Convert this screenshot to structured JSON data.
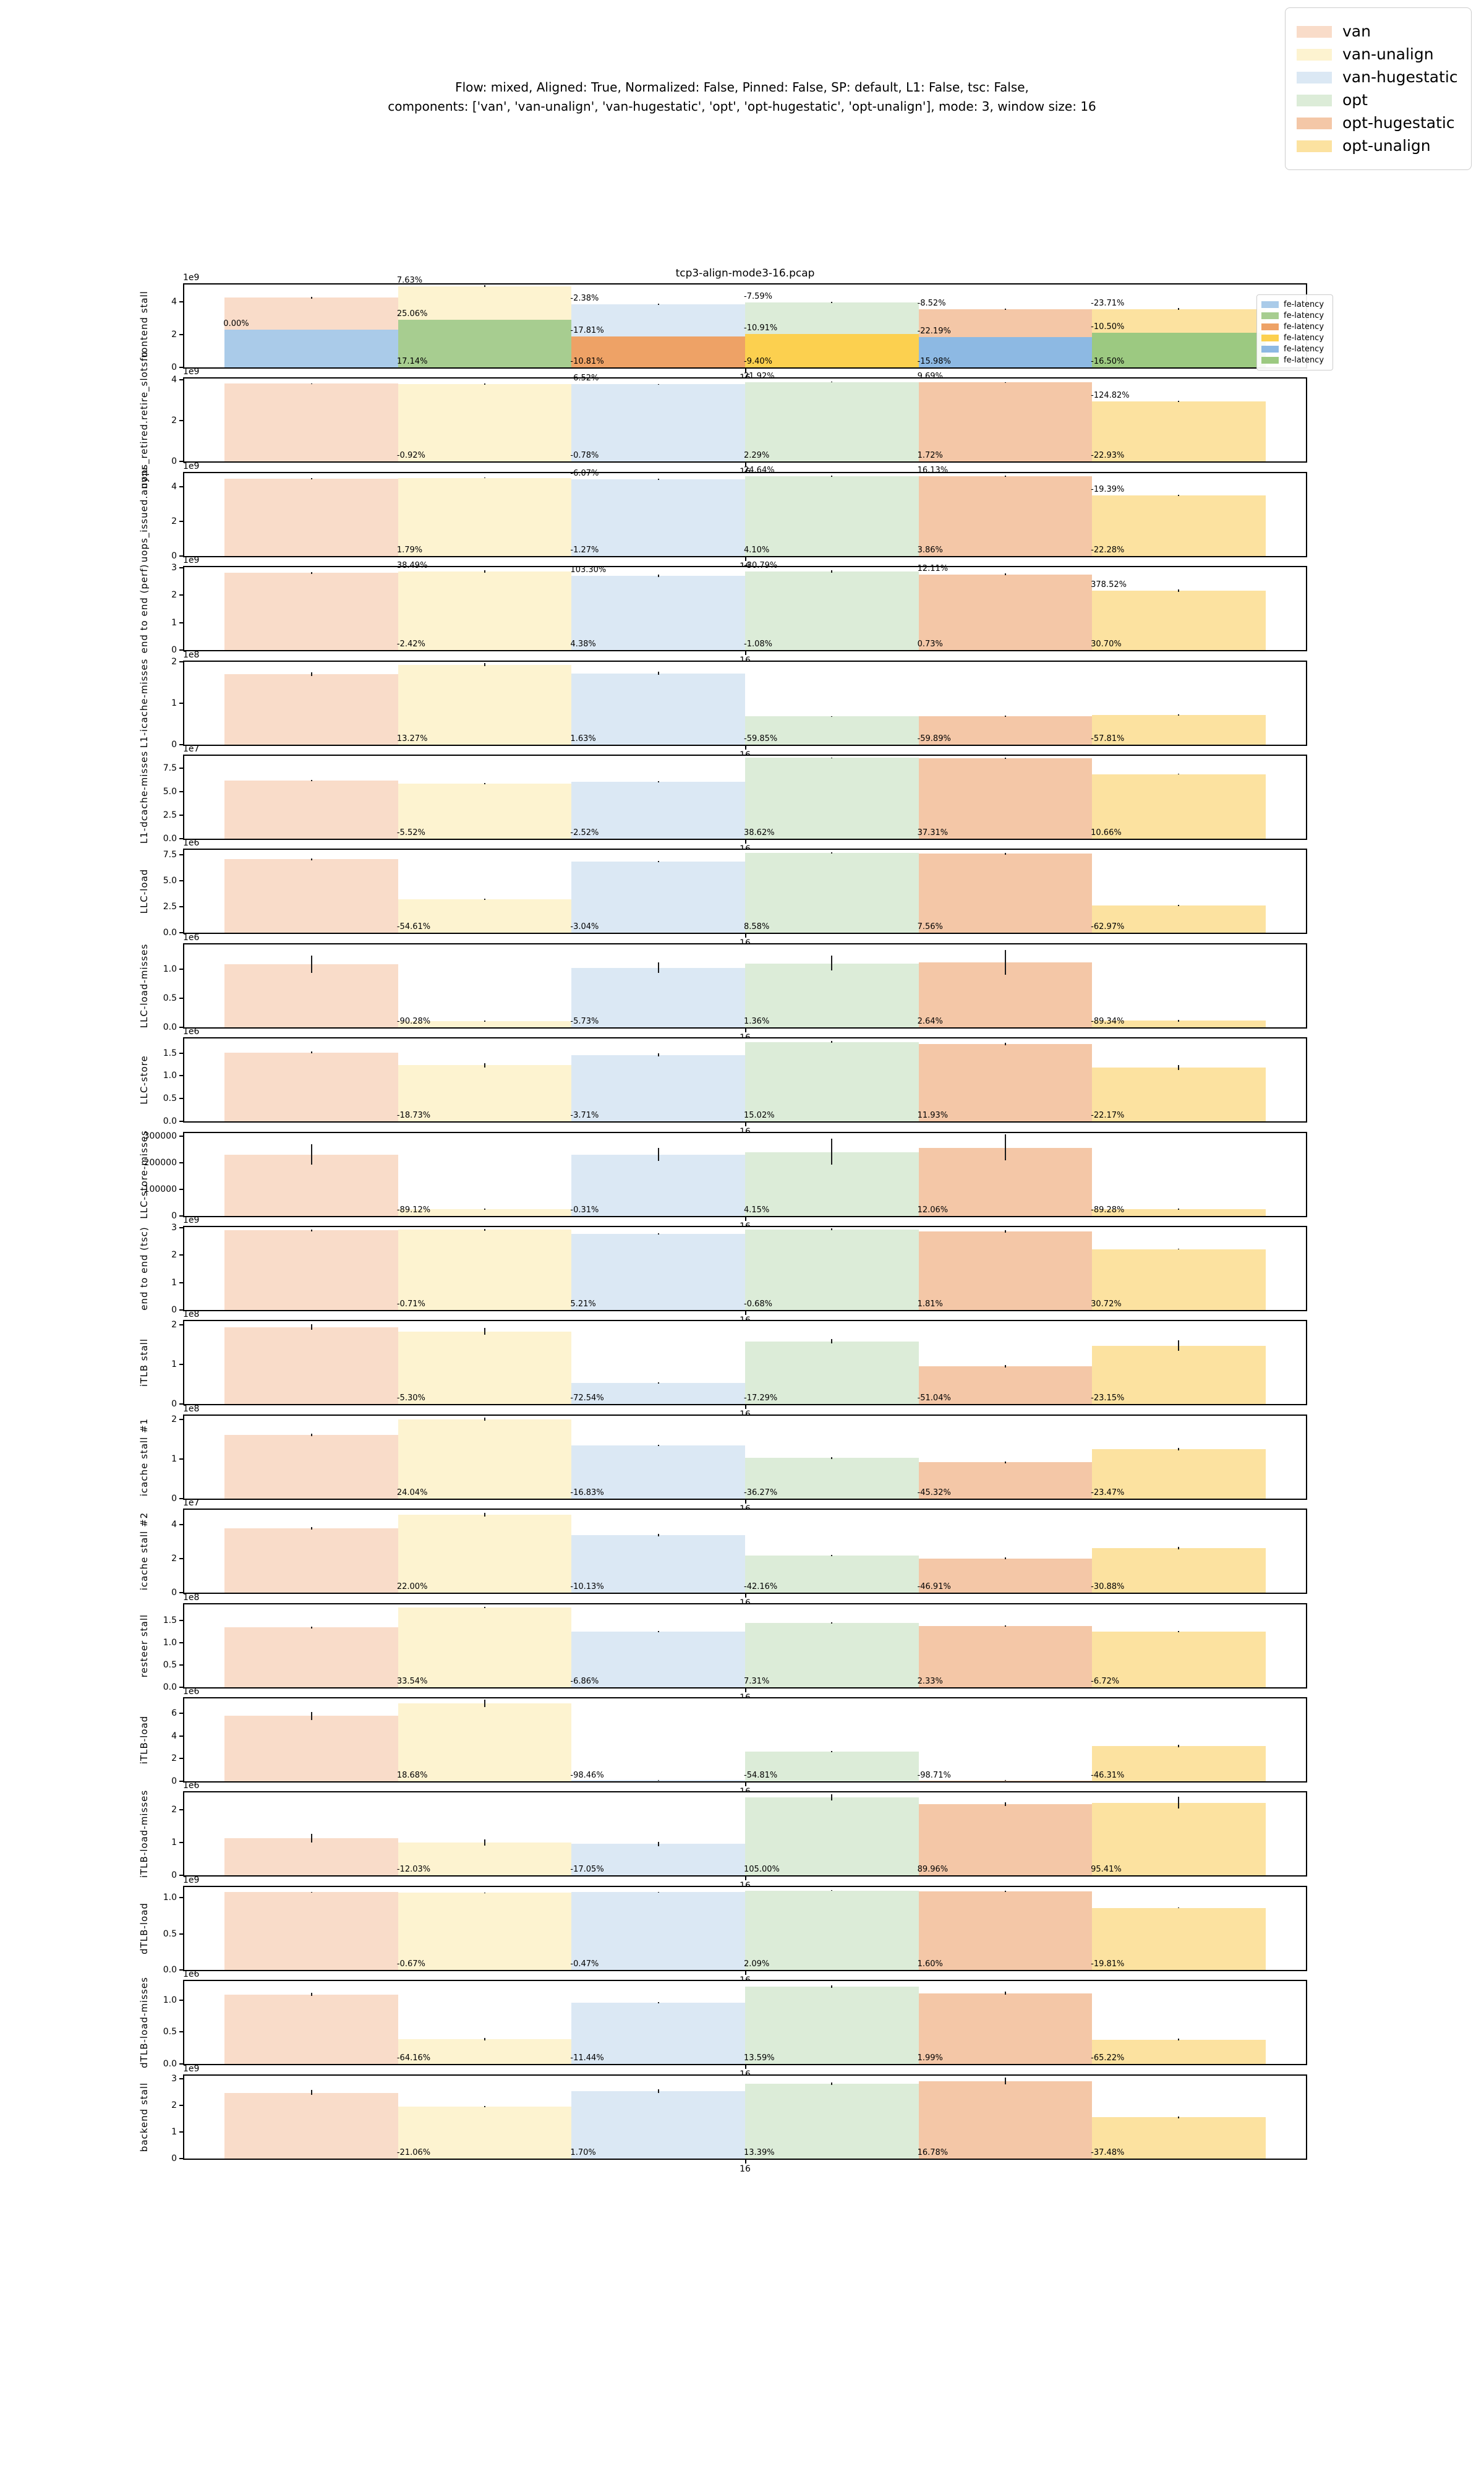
{
  "suptitle": {
    "line1": "Flow: mixed, Aligned: True, Normalized: False, Pinned: False, SP: default, L1: False, tsc: False,",
    "line2": "components: ['van', 'van-unalign', 'van-hugestatic', 'opt', 'opt-hugestatic', 'opt-unalign'], mode: 3, window size: 16"
  },
  "series": {
    "names": [
      "van",
      "van-unalign",
      "van-hugestatic",
      "opt",
      "opt-hugestatic",
      "opt-unalign"
    ],
    "colors": [
      "#f9dcc9",
      "#fdf3d0",
      "#dbe8f4",
      "#dcecd8",
      "#f4c7a7",
      "#fce2a0"
    ]
  },
  "inner_legend": {
    "label": "fe-latency",
    "colors": [
      "#aacbe9",
      "#a7cd90",
      "#eea266",
      "#fcd04f",
      "#8db9e3",
      "#9cc981"
    ]
  },
  "x_tick": "16",
  "chart_data": {
    "type": "bar",
    "x_group_label": "16",
    "note_units": "values are in axis units; multiply by scale (e.g. 1e9)",
    "charts": [
      {
        "title": "tcp3-align-mode3-16.pcap",
        "ylabel": "frontend stall",
        "scale": "1e9",
        "ymax": 5.05,
        "yticks": [
          [
            0,
            "0"
          ],
          [
            2,
            "2"
          ],
          [
            4,
            "4"
          ]
        ],
        "values": [
          4.25,
          4.95,
          3.85,
          3.95,
          3.55,
          3.55
        ],
        "fg_values": [
          2.3,
          2.9,
          1.9,
          2.05,
          1.85,
          2.1
        ],
        "err": [
          0.05,
          0.05,
          0.04,
          0.04,
          0.04,
          0.05
        ],
        "labels_top": [
          null,
          "7.63%",
          "-2.38%",
          "-7.59%",
          "-8.52%",
          "-23.71%"
        ],
        "labels_mid": [
          "0.00%",
          "25.06%",
          "-17.81%",
          "-10.91%",
          "-22.19%",
          "-10.50%"
        ],
        "labels_bottom": [
          null,
          "17.14%",
          "-10.81%",
          "-9.40%",
          "-15.98%",
          "-16.50%"
        ]
      },
      {
        "ylabel": "uops_retired.retire_slots:u",
        "scale": "1e9",
        "ymax": 4.05,
        "yticks": [
          [
            0,
            "0"
          ],
          [
            2,
            "2"
          ],
          [
            4,
            "4"
          ]
        ],
        "values": [
          3.8,
          3.78,
          3.77,
          3.88,
          3.86,
          2.93
        ],
        "err": [
          0.02,
          0.02,
          0.02,
          0.02,
          0.02,
          0.02
        ],
        "labels_top": [
          null,
          null,
          "-6.52%",
          "21.92%",
          "9.69%",
          "-124.82%"
        ],
        "labels_bottom": [
          null,
          "-0.92%",
          "-0.78%",
          "2.29%",
          "1.72%",
          "-22.93%"
        ]
      },
      {
        "ylabel": "uops_issued.any:u",
        "scale": "1e9",
        "ymax": 4.8,
        "yticks": [
          [
            0,
            "0"
          ],
          [
            2,
            "2"
          ],
          [
            4,
            "4"
          ]
        ],
        "values": [
          4.47,
          4.53,
          4.43,
          4.61,
          4.63,
          3.5
        ],
        "err": [
          0.03,
          0.03,
          0.03,
          0.03,
          0.03,
          0.03
        ],
        "labels_top": [
          null,
          null,
          "-6.07%",
          "24.64%",
          "16.13%",
          "-19.39%"
        ],
        "labels_bottom": [
          null,
          "1.79%",
          "-1.27%",
          "4.10%",
          "3.86%",
          "-22.28%"
        ]
      },
      {
        "ylabel": "end to end (perf)",
        "scale": "1e9",
        "ymax": 3.02,
        "yticks": [
          [
            0,
            "0"
          ],
          [
            1,
            "1"
          ],
          [
            2,
            "2"
          ],
          [
            3,
            "3"
          ]
        ],
        "values": [
          2.81,
          2.86,
          2.7,
          2.86,
          2.76,
          2.16
        ],
        "err": [
          0.03,
          0.04,
          0.05,
          0.04,
          0.04,
          0.05
        ],
        "labels_top": [
          null,
          "38.49%",
          "103.30%",
          "-30.79%",
          "12.11%",
          "378.52%"
        ],
        "labels_bottom": [
          null,
          "-2.42%",
          "4.38%",
          "-1.08%",
          "0.73%",
          "30.70%"
        ]
      },
      {
        "ylabel": "L1-icache-misses",
        "scale": "1e8",
        "ymax": 2.0,
        "yticks": [
          [
            0,
            "0"
          ],
          [
            1,
            "1"
          ],
          [
            2,
            "2"
          ]
        ],
        "values": [
          1.7,
          1.93,
          1.72,
          0.68,
          0.69,
          0.72
        ],
        "err": [
          0.04,
          0.04,
          0.04,
          0.012,
          0.012,
          0.012
        ],
        "labels_bottom": [
          null,
          "13.27%",
          "1.63%",
          "-59.85%",
          "-59.89%",
          "-57.81%"
        ]
      },
      {
        "ylabel": "L1-dcache-misses",
        "scale": "1e7",
        "ymax": 8.8,
        "yticks": [
          [
            0,
            "0.0"
          ],
          [
            2.5,
            "2.5"
          ],
          [
            5,
            "5.0"
          ],
          [
            7.5,
            "7.5"
          ]
        ],
        "values": [
          6.2,
          5.85,
          6.05,
          8.58,
          8.52,
          6.86
        ],
        "err": [
          0.06,
          0.08,
          0.06,
          0.05,
          0.06,
          0.06
        ],
        "labels_bottom": [
          null,
          "-5.52%",
          "-2.52%",
          "38.62%",
          "37.31%",
          "10.66%"
        ]
      },
      {
        "ylabel": "LLC-load",
        "scale": "1e6",
        "ymax": 7.95,
        "yticks": [
          [
            0,
            "0.0"
          ],
          [
            2.5,
            "2.5"
          ],
          [
            5,
            "5.0"
          ],
          [
            7.5,
            "7.5"
          ]
        ],
        "values": [
          7.04,
          3.2,
          6.83,
          7.65,
          7.57,
          2.61
        ],
        "err": [
          0.08,
          0.07,
          0.06,
          0.07,
          0.08,
          0.07
        ],
        "labels_bottom": [
          null,
          "-54.61%",
          "-3.04%",
          "8.58%",
          "7.56%",
          "-62.97%"
        ]
      },
      {
        "ylabel": "LLC-load-misses",
        "scale": "1e6",
        "ymax": 1.42,
        "yticks": [
          [
            0,
            "0.0"
          ],
          [
            0.5,
            "0.5"
          ],
          [
            1,
            "1.0"
          ]
        ],
        "values": [
          1.08,
          0.105,
          1.02,
          1.095,
          1.11,
          0.115
        ],
        "err": [
          0.145,
          0.012,
          0.09,
          0.125,
          0.205,
          0.015
        ],
        "labels_bottom": [
          null,
          "-90.28%",
          "-5.73%",
          "1.36%",
          "2.64%",
          "-89.34%"
        ]
      },
      {
        "ylabel": "LLC-store",
        "scale": "1e6",
        "ymax": 1.82,
        "yticks": [
          [
            0,
            "0.0"
          ],
          [
            0.5,
            "0.5"
          ],
          [
            1,
            "1.0"
          ],
          [
            1.5,
            "1.5"
          ]
        ],
        "values": [
          1.51,
          1.23,
          1.46,
          1.74,
          1.7,
          1.18
        ],
        "err": [
          0.02,
          0.05,
          0.035,
          0.02,
          0.03,
          0.05
        ],
        "labels_bottom": [
          null,
          "-18.73%",
          "-3.71%",
          "15.02%",
          "11.93%",
          "-22.17%"
        ]
      },
      {
        "ylabel": "LLC-store-misses",
        "scale": "",
        "ymax": 312000,
        "yticks": [
          [
            0,
            "0"
          ],
          [
            100000,
            "100000"
          ],
          [
            200000,
            "200000"
          ],
          [
            300000,
            "300000"
          ]
        ],
        "values": [
          230000,
          25000,
          231000,
          241000,
          257000,
          25000
        ],
        "err": [
          37000,
          2500,
          24000,
          47000,
          48000,
          2500
        ],
        "labels_bottom": [
          null,
          "-89.12%",
          "-0.31%",
          "4.15%",
          "12.06%",
          "-89.28%"
        ]
      },
      {
        "ylabel": "end to end (tsc)",
        "scale": "1e9",
        "ymax": 3.02,
        "yticks": [
          [
            0,
            "0"
          ],
          [
            1,
            "1"
          ],
          [
            2,
            "2"
          ],
          [
            3,
            "3"
          ]
        ],
        "values": [
          2.9,
          2.92,
          2.77,
          2.94,
          2.86,
          2.22
        ],
        "err": [
          0.03,
          0.03,
          0.02,
          0.04,
          0.035,
          0.02
        ],
        "labels_bottom": [
          null,
          "-0.71%",
          "5.21%",
          "-0.68%",
          "1.81%",
          "30.72%"
        ]
      },
      {
        "ylabel": "iTLB stall",
        "scale": "1e8",
        "ymax": 2.1,
        "yticks": [
          [
            0,
            "0"
          ],
          [
            1,
            "1"
          ],
          [
            2,
            "2"
          ]
        ],
        "values": [
          1.95,
          1.84,
          0.53,
          1.59,
          0.96,
          1.48
        ],
        "err": [
          0.07,
          0.09,
          0.02,
          0.05,
          0.03,
          0.13
        ],
        "labels_bottom": [
          null,
          "-5.30%",
          "-72.54%",
          "-17.29%",
          "-51.04%",
          "-23.15%"
        ]
      },
      {
        "ylabel": "icache stall #1",
        "scale": "1e8",
        "ymax": 2.1,
        "yticks": [
          [
            0,
            "0"
          ],
          [
            1,
            "1"
          ],
          [
            2,
            "2"
          ]
        ],
        "values": [
          1.62,
          2.01,
          1.35,
          1.03,
          0.92,
          1.26
        ],
        "err": [
          0.03,
          0.035,
          0.02,
          0.025,
          0.02,
          0.03
        ],
        "labels_bottom": [
          null,
          "24.04%",
          "-16.83%",
          "-36.27%",
          "-45.32%",
          "-23.47%"
        ]
      },
      {
        "ylabel": "icache stall #2",
        "scale": "1e7",
        "ymax": 4.85,
        "yticks": [
          [
            0,
            "0"
          ],
          [
            2,
            "2"
          ],
          [
            4,
            "4"
          ]
        ],
        "values": [
          3.76,
          4.56,
          3.36,
          2.16,
          2.0,
          2.6
        ],
        "err": [
          0.08,
          0.1,
          0.06,
          0.04,
          0.05,
          0.07
        ],
        "labels_bottom": [
          null,
          "22.00%",
          "-10.13%",
          "-42.16%",
          "-46.91%",
          "-30.88%"
        ]
      },
      {
        "ylabel": "resteer stall",
        "scale": "1e8",
        "ymax": 1.86,
        "yticks": [
          [
            0,
            "0.0"
          ],
          [
            0.5,
            "0.5"
          ],
          [
            1,
            "1.0"
          ],
          [
            1.5,
            "1.5"
          ]
        ],
        "values": [
          1.34,
          1.79,
          1.25,
          1.44,
          1.37,
          1.25
        ],
        "err": [
          0.015,
          0.02,
          0.012,
          0.015,
          0.015,
          0.015
        ],
        "labels_bottom": [
          null,
          "33.54%",
          "-6.86%",
          "7.31%",
          "2.33%",
          "-6.72%"
        ]
      },
      {
        "ylabel": "iTLB-load",
        "scale": "1e6",
        "ymax": 7.3,
        "yticks": [
          [
            0,
            "0"
          ],
          [
            2,
            "2"
          ],
          [
            4,
            "4"
          ],
          [
            6,
            "6"
          ]
        ],
        "values": [
          5.76,
          6.84,
          0.09,
          2.61,
          0.075,
          3.1
        ],
        "err": [
          0.34,
          0.32,
          0.02,
          0.06,
          0.02,
          0.13
        ],
        "labels_bottom": [
          null,
          "18.68%",
          "-98.46%",
          "-54.81%",
          "-98.71%",
          "-46.31%"
        ]
      },
      {
        "ylabel": "iTLB-load-misses",
        "scale": "1e6",
        "ymax": 2.52,
        "yticks": [
          [
            0,
            "0"
          ],
          [
            1,
            "1"
          ],
          [
            2,
            "2"
          ]
        ],
        "values": [
          1.12,
          1.0,
          0.95,
          2.37,
          2.16,
          2.2
        ],
        "err": [
          0.13,
          0.09,
          0.06,
          0.09,
          0.06,
          0.17
        ],
        "labels_bottom": [
          null,
          "-12.03%",
          "-17.05%",
          "105.00%",
          "89.96%",
          "95.41%"
        ]
      },
      {
        "ylabel": "dTLB-load",
        "scale": "1e9",
        "ymax": 1.15,
        "yticks": [
          [
            0,
            "0.0"
          ],
          [
            0.5,
            "0.5"
          ],
          [
            1,
            "1.0"
          ]
        ],
        "values": [
          1.08,
          1.07,
          1.08,
          1.1,
          1.09,
          0.86
        ],
        "err": [
          0.004,
          0.004,
          0.004,
          0.005,
          0.005,
          0.004
        ],
        "labels_bottom": [
          null,
          "-0.67%",
          "-0.47%",
          "2.09%",
          "1.60%",
          "-19.81%"
        ]
      },
      {
        "ylabel": "dTLB-load-misses",
        "scale": "1e6",
        "ymax": 1.3,
        "yticks": [
          [
            0,
            "0.0"
          ],
          [
            0.5,
            "0.5"
          ],
          [
            1,
            "1.0"
          ]
        ],
        "values": [
          1.09,
          0.39,
          0.96,
          1.21,
          1.11,
          0.38
        ],
        "err": [
          0.025,
          0.02,
          0.012,
          0.02,
          0.02,
          0.015
        ],
        "labels_bottom": [
          null,
          "-64.16%",
          "-11.44%",
          "13.59%",
          "1.99%",
          "-65.22%"
        ]
      },
      {
        "ylabel": "backend stall",
        "scale": "1e9",
        "ymax": 3.12,
        "yticks": [
          [
            0,
            "0"
          ],
          [
            1,
            "1"
          ],
          [
            2,
            "2"
          ],
          [
            3,
            "3"
          ]
        ],
        "values": [
          2.48,
          1.96,
          2.54,
          2.82,
          2.92,
          1.55
        ],
        "err": [
          0.09,
          0.025,
          0.07,
          0.05,
          0.12,
          0.03
        ],
        "labels_bottom": [
          null,
          "-21.06%",
          "1.70%",
          "13.39%",
          "16.78%",
          "-37.48%"
        ]
      }
    ]
  }
}
